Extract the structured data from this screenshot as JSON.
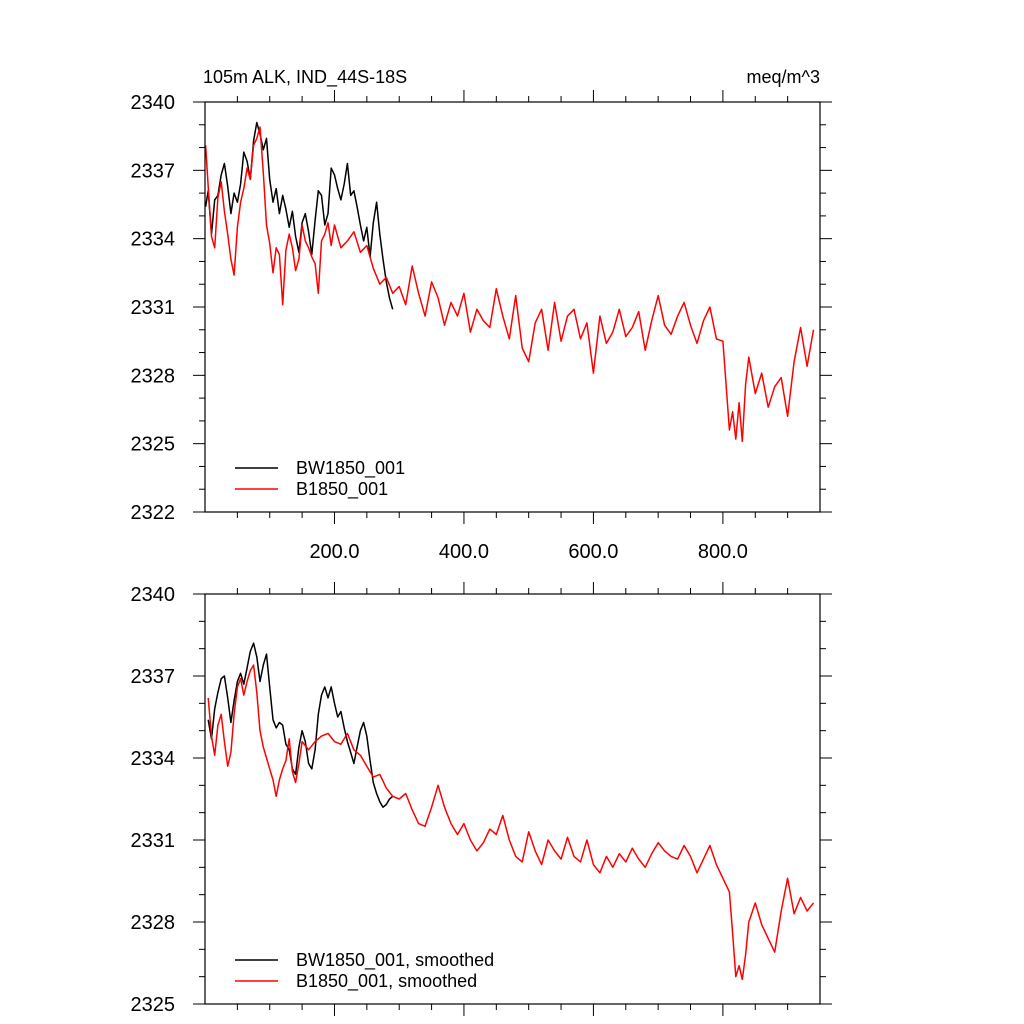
{
  "figure": {
    "title_left": "105m ALK, IND_44S-18S",
    "title_right": "meq/m^3",
    "colors": {
      "series_1": "#000000",
      "series_2": "#ff0000",
      "axes": "#000000",
      "background": "#ffffff"
    }
  },
  "chart_data": [
    {
      "type": "line",
      "title": "105m ALK, IND_44S-18S",
      "units": "meq/m^3",
      "xlim": [
        0,
        950
      ],
      "ylim": [
        2322,
        2340
      ],
      "xticks": [
        200,
        400,
        600,
        800
      ],
      "xtick_labels": [
        "200.0",
        "400.0",
        "600.0",
        "800.0"
      ],
      "yticks": [
        2322,
        2325,
        2328,
        2331,
        2334,
        2337,
        2340
      ],
      "ytick_labels": [
        "2322",
        "2325",
        "2328",
        "2331",
        "2334",
        "2337",
        "2340"
      ],
      "legend_position": "bottom-left",
      "grid": false,
      "series": [
        {
          "name": "BW1850_001",
          "color": "#000000",
          "x": [
            1,
            5,
            10,
            15,
            20,
            25,
            30,
            35,
            40,
            45,
            50,
            55,
            60,
            65,
            70,
            75,
            80,
            85,
            90,
            95,
            100,
            105,
            110,
            115,
            120,
            125,
            130,
            135,
            140,
            145,
            150,
            155,
            160,
            165,
            170,
            175,
            180,
            185,
            190,
            195,
            200,
            205,
            210,
            215,
            220,
            225,
            230,
            235,
            240,
            245,
            250,
            255,
            260,
            265,
            270,
            275,
            280,
            285,
            290
          ],
          "y": [
            2335.4,
            2336.1,
            2334.2,
            2335.7,
            2335.9,
            2336.8,
            2337.3,
            2336.3,
            2335.1,
            2336.0,
            2335.6,
            2336.4,
            2337.8,
            2337.4,
            2336.6,
            2338.3,
            2339.1,
            2338.6,
            2337.9,
            2338.4,
            2336.6,
            2335.6,
            2336.2,
            2335.1,
            2335.9,
            2335.3,
            2334.5,
            2335.2,
            2334.1,
            2333.4,
            2334.7,
            2335.1,
            2334.3,
            2333.3,
            2334.8,
            2336.1,
            2335.9,
            2334.6,
            2335.1,
            2337.1,
            2336.8,
            2336.2,
            2335.7,
            2336.4,
            2337.3,
            2335.9,
            2336.1,
            2335.4,
            2334.6,
            2333.9,
            2334.5,
            2333.2,
            2334.7,
            2335.6,
            2334.2,
            2333.1,
            2332.1,
            2331.4,
            2330.9
          ]
        },
        {
          "name": "B1850_001",
          "color": "#ff0000",
          "x": [
            1,
            5,
            10,
            15,
            20,
            25,
            30,
            35,
            40,
            45,
            50,
            55,
            60,
            65,
            70,
            75,
            80,
            85,
            90,
            95,
            100,
            105,
            110,
            115,
            120,
            125,
            130,
            135,
            140,
            145,
            150,
            155,
            160,
            165,
            170,
            175,
            180,
            185,
            190,
            195,
            200,
            210,
            220,
            230,
            240,
            250,
            260,
            270,
            280,
            290,
            300,
            310,
            320,
            330,
            340,
            350,
            360,
            370,
            380,
            390,
            400,
            410,
            420,
            430,
            440,
            450,
            460,
            470,
            480,
            490,
            500,
            510,
            520,
            530,
            540,
            550,
            560,
            570,
            580,
            590,
            600,
            610,
            620,
            630,
            640,
            650,
            660,
            670,
            680,
            690,
            700,
            710,
            720,
            730,
            740,
            750,
            760,
            770,
            780,
            790,
            800,
            810,
            815,
            820,
            825,
            830,
            835,
            840,
            850,
            860,
            870,
            880,
            890,
            900,
            910,
            920,
            930,
            940
          ],
          "y": [
            2338.1,
            2336.3,
            2334.1,
            2333.6,
            2335.8,
            2336.5,
            2335.2,
            2334.2,
            2333.1,
            2332.4,
            2334.5,
            2335.6,
            2336.2,
            2337.1,
            2336.6,
            2338.1,
            2338.4,
            2338.9,
            2336.9,
            2334.6,
            2333.8,
            2332.5,
            2333.6,
            2333.3,
            2331.1,
            2333.5,
            2334.2,
            2333.6,
            2332.6,
            2333.1,
            2334.6,
            2333.9,
            2333.6,
            2333.2,
            2332.9,
            2331.6,
            2333.9,
            2334.2,
            2334.7,
            2333.7,
            2334.6,
            2333.6,
            2333.9,
            2334.3,
            2333.4,
            2333.7,
            2332.7,
            2332.0,
            2332.3,
            2331.6,
            2331.9,
            2331.1,
            2332.8,
            2331.6,
            2330.6,
            2332.1,
            2331.4,
            2330.2,
            2331.2,
            2330.6,
            2331.6,
            2329.9,
            2330.9,
            2330.4,
            2330.1,
            2331.8,
            2330.6,
            2329.6,
            2331.5,
            2329.2,
            2328.6,
            2330.3,
            2330.9,
            2329.1,
            2331.2,
            2329.5,
            2330.6,
            2330.9,
            2329.6,
            2330.3,
            2328.1,
            2330.6,
            2329.4,
            2329.9,
            2330.9,
            2329.7,
            2330.1,
            2330.8,
            2329.1,
            2330.4,
            2331.5,
            2330.2,
            2329.8,
            2330.6,
            2331.2,
            2330.2,
            2329.4,
            2330.4,
            2331.0,
            2329.6,
            2329.5,
            2325.6,
            2326.4,
            2325.2,
            2326.8,
            2325.1,
            2327.6,
            2328.8,
            2327.2,
            2328.1,
            2326.6,
            2327.5,
            2327.9,
            2326.2,
            2328.6,
            2330.1,
            2328.4,
            2330.0
          ]
        }
      ]
    },
    {
      "type": "line",
      "xlim": [
        0,
        950
      ],
      "ylim": [
        2325,
        2340
      ],
      "yticks": [
        2325,
        2328,
        2331,
        2334,
        2337,
        2340
      ],
      "ytick_labels": [
        "2325",
        "2328",
        "2331",
        "2334",
        "2337",
        "2340"
      ],
      "legend_position": "bottom-left",
      "grid": false,
      "series": [
        {
          "name": "BW1850_001, smoothed",
          "color": "#000000",
          "x": [
            5,
            10,
            15,
            20,
            25,
            30,
            35,
            40,
            45,
            50,
            55,
            60,
            65,
            70,
            75,
            80,
            85,
            90,
            95,
            100,
            105,
            110,
            115,
            120,
            125,
            130,
            135,
            140,
            145,
            150,
            155,
            160,
            165,
            170,
            175,
            180,
            185,
            190,
            195,
            200,
            205,
            210,
            215,
            220,
            225,
            230,
            235,
            240,
            245,
            250,
            255,
            260,
            265,
            270,
            275,
            280,
            285,
            290
          ],
          "y": [
            2335.4,
            2334.7,
            2335.8,
            2336.4,
            2336.9,
            2337.0,
            2336.2,
            2335.3,
            2336.1,
            2336.8,
            2337.1,
            2336.7,
            2337.3,
            2337.9,
            2338.2,
            2337.7,
            2336.8,
            2337.4,
            2337.8,
            2336.6,
            2335.4,
            2335.1,
            2335.3,
            2335.2,
            2334.5,
            2334.3,
            2333.6,
            2333.4,
            2334.4,
            2335.0,
            2334.6,
            2333.8,
            2333.6,
            2334.3,
            2335.6,
            2336.3,
            2336.6,
            2336.2,
            2336.6,
            2336.0,
            2335.5,
            2335.7,
            2335.1,
            2334.6,
            2334.2,
            2333.8,
            2334.4,
            2335.0,
            2335.3,
            2334.8,
            2333.9,
            2333.1,
            2332.7,
            2332.4,
            2332.2,
            2332.3,
            2332.5,
            2332.6
          ]
        },
        {
          "name": "B1850_001, smoothed",
          "color": "#ff0000",
          "x": [
            5,
            10,
            15,
            20,
            25,
            30,
            35,
            40,
            45,
            50,
            55,
            60,
            65,
            70,
            75,
            80,
            85,
            90,
            95,
            100,
            105,
            110,
            115,
            120,
            125,
            130,
            135,
            140,
            145,
            150,
            160,
            170,
            180,
            190,
            200,
            210,
            220,
            230,
            240,
            250,
            260,
            270,
            280,
            290,
            300,
            310,
            320,
            330,
            340,
            350,
            360,
            370,
            380,
            390,
            400,
            410,
            420,
            430,
            440,
            450,
            460,
            470,
            480,
            490,
            500,
            510,
            520,
            530,
            540,
            550,
            560,
            570,
            580,
            590,
            600,
            610,
            620,
            630,
            640,
            650,
            660,
            670,
            680,
            690,
            700,
            710,
            720,
            730,
            740,
            750,
            760,
            770,
            780,
            790,
            800,
            810,
            815,
            820,
            825,
            830,
            835,
            840,
            850,
            860,
            870,
            880,
            890,
            900,
            910,
            920,
            930,
            940
          ],
          "y": [
            2336.2,
            2334.8,
            2334.1,
            2335.2,
            2335.6,
            2334.6,
            2333.7,
            2334.2,
            2335.6,
            2336.6,
            2336.9,
            2336.3,
            2336.8,
            2337.2,
            2337.4,
            2336.4,
            2335.0,
            2334.4,
            2334.0,
            2333.6,
            2333.2,
            2332.6,
            2333.2,
            2333.6,
            2333.9,
            2334.7,
            2333.5,
            2333.1,
            2333.8,
            2334.6,
            2334.3,
            2334.6,
            2334.8,
            2334.9,
            2334.6,
            2334.5,
            2334.9,
            2334.3,
            2334.1,
            2333.7,
            2333.3,
            2333.4,
            2332.9,
            2332.6,
            2332.5,
            2332.7,
            2332.1,
            2331.6,
            2331.5,
            2332.2,
            2333.0,
            2332.2,
            2331.6,
            2331.2,
            2331.6,
            2331.0,
            2330.6,
            2330.9,
            2331.4,
            2331.2,
            2331.9,
            2331.0,
            2330.4,
            2330.2,
            2331.3,
            2330.6,
            2330.1,
            2331.0,
            2330.6,
            2330.3,
            2331.1,
            2330.4,
            2330.2,
            2331.0,
            2330.1,
            2329.8,
            2330.4,
            2330.0,
            2330.5,
            2330.2,
            2330.7,
            2330.3,
            2330.0,
            2330.5,
            2330.9,
            2330.6,
            2330.4,
            2330.3,
            2330.8,
            2330.4,
            2329.8,
            2330.3,
            2330.8,
            2330.1,
            2329.6,
            2329.1,
            2327.6,
            2326.0,
            2326.4,
            2325.9,
            2326.8,
            2328.0,
            2328.7,
            2327.9,
            2327.4,
            2326.9,
            2328.4,
            2329.6,
            2328.3,
            2328.9,
            2328.4,
            2328.7
          ]
        }
      ]
    }
  ]
}
